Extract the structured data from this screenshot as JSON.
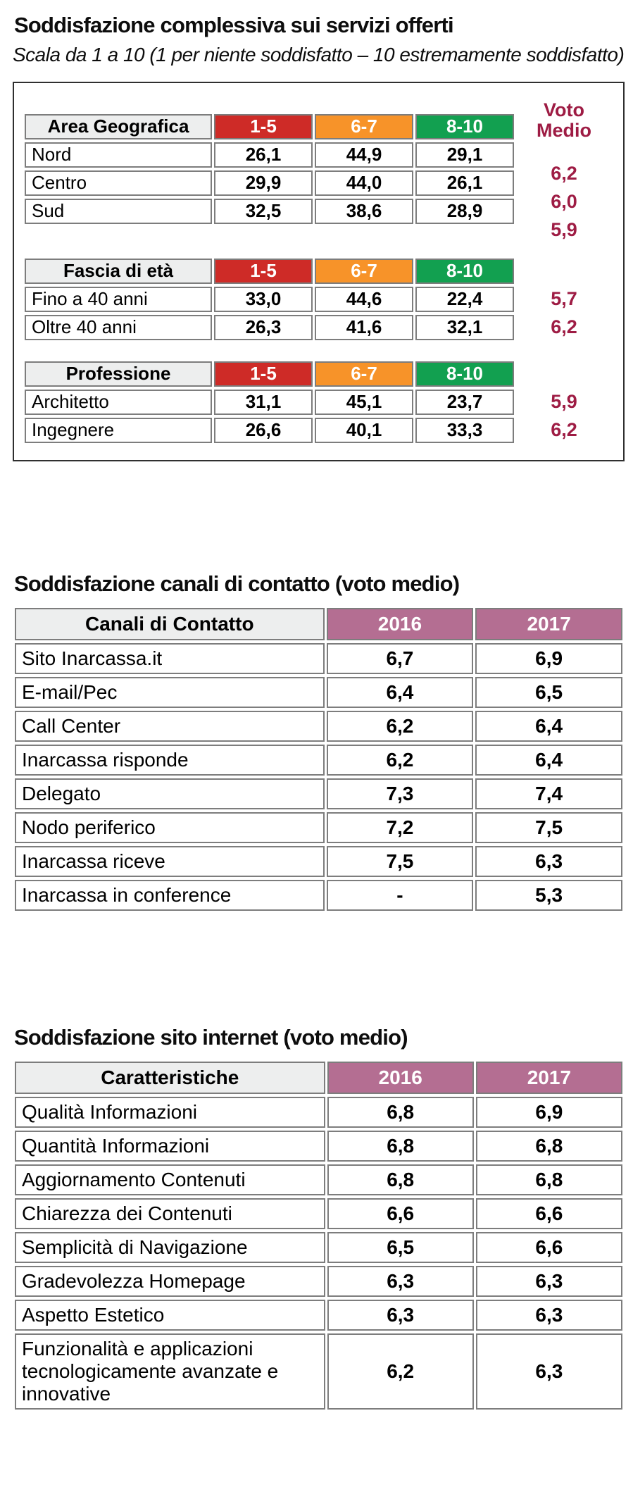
{
  "colors": {
    "range_1_5": "#ce2b27",
    "range_6_7": "#f79329",
    "range_8_10": "#12a050",
    "year_header": "#b46e92",
    "voto_medio_text": "#9e1c44",
    "header_gray": "#edeeee",
    "cell_border": "#7d7d7d"
  },
  "section1": {
    "title": "Soddisfazione complessiva sui servizi offerti",
    "subtitle": "Scala da 1 a 10 (1 per niente soddisfatto – 10 estremamente soddisfatto)",
    "voto_medio_label": "Voto Medio",
    "ranges": [
      "1-5",
      "6-7",
      "8-10"
    ],
    "groups": [
      {
        "header": "Area Geografica",
        "rows": [
          {
            "label": "Nord",
            "v1": "26,1",
            "v2": "44,9",
            "v3": "29,1",
            "voto": "6,2"
          },
          {
            "label": "Centro",
            "v1": "29,9",
            "v2": "44,0",
            "v3": "26,1",
            "voto": "6,0"
          },
          {
            "label": "Sud",
            "v1": "32,5",
            "v2": "38,6",
            "v3": "28,9",
            "voto": "5,9"
          }
        ]
      },
      {
        "header": "Fascia di età",
        "rows": [
          {
            "label": "Fino a 40 anni",
            "v1": "33,0",
            "v2": "44,6",
            "v3": "22,4",
            "voto": "5,7"
          },
          {
            "label": "Oltre 40 anni",
            "v1": "26,3",
            "v2": "41,6",
            "v3": "32,1",
            "voto": "6,2"
          }
        ]
      },
      {
        "header": "Professione",
        "rows": [
          {
            "label": "Architetto",
            "v1": "31,1",
            "v2": "45,1",
            "v3": "23,7",
            "voto": "5,9"
          },
          {
            "label": "Ingegnere",
            "v1": "26,6",
            "v2": "40,1",
            "v3": "33,3",
            "voto": "6,2"
          }
        ]
      }
    ]
  },
  "section2": {
    "title": "Soddisfazione canali di contatto (voto medio)",
    "col_header": "Canali di Contatto",
    "years": [
      "2016",
      "2017"
    ],
    "rows": [
      {
        "label": "Sito Inarcassa.it",
        "y2016": "6,7",
        "y2017": "6,9"
      },
      {
        "label": "E-mail/Pec",
        "y2016": "6,4",
        "y2017": "6,5"
      },
      {
        "label": "Call Center",
        "y2016": "6,2",
        "y2017": "6,4"
      },
      {
        "label": "Inarcassa risponde",
        "y2016": "6,2",
        "y2017": "6,4"
      },
      {
        "label": "Delegato",
        "y2016": "7,3",
        "y2017": "7,4"
      },
      {
        "label": "Nodo periferico",
        "y2016": "7,2",
        "y2017": "7,5"
      },
      {
        "label": "Inarcassa riceve",
        "y2016": "7,5",
        "y2017": "6,3"
      },
      {
        "label": "Inarcassa in conference",
        "y2016": "-",
        "y2017": "5,3"
      }
    ]
  },
  "section3": {
    "title": "Soddisfazione sito internet (voto medio)",
    "col_header": "Caratteristiche",
    "years": [
      "2016",
      "2017"
    ],
    "rows": [
      {
        "label": "Qualità Informazioni",
        "y2016": "6,8",
        "y2017": "6,9"
      },
      {
        "label": "Quantità Informazioni",
        "y2016": "6,8",
        "y2017": "6,8"
      },
      {
        "label": "Aggiornamento Contenuti",
        "y2016": "6,8",
        "y2017": "6,8"
      },
      {
        "label": "Chiarezza dei Contenuti",
        "y2016": "6,6",
        "y2017": "6,6"
      },
      {
        "label": "Semplicità di Navigazione",
        "y2016": "6,5",
        "y2017": "6,6"
      },
      {
        "label": "Gradevolezza Homepage",
        "y2016": "6,3",
        "y2017": "6,3"
      },
      {
        "label": "Aspetto Estetico",
        "y2016": "6,3",
        "y2017": "6,3"
      },
      {
        "label": "Funzionalità e applicazioni tecnologicamente avanzate e innovative",
        "y2016": "6,2",
        "y2017": "6,3"
      }
    ]
  }
}
